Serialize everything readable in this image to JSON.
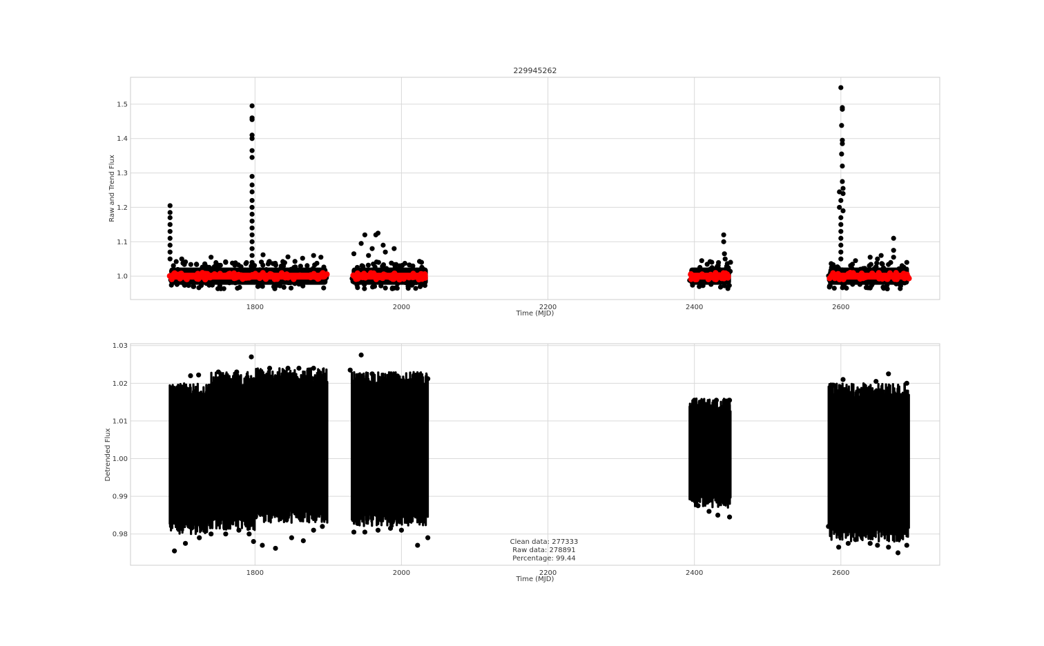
{
  "chart_data": [
    {
      "type": "scatter",
      "title": "229945262",
      "xlabel": "Time (MJD)",
      "ylabel": "Raw and Trend Flux",
      "xlim": [
        1630,
        2735
      ],
      "ylim": [
        0.932,
        1.578
      ],
      "xticks": [
        1800,
        2000,
        2200,
        2400,
        2600
      ],
      "yticks": [
        1.0,
        1.1,
        1.2,
        1.3,
        1.4,
        1.5
      ],
      "yticklabels": [
        "1.0",
        "1.1",
        "1.2",
        "1.3",
        "1.4",
        "1.5"
      ],
      "grid": true,
      "series": [
        {
          "role": "raw",
          "color": "#000000",
          "segments": [
            [
              1683,
              1899
            ],
            [
              1932,
              2036
            ],
            [
              2393,
              2450
            ],
            [
              2583,
              2693
            ]
          ],
          "band": [
            0.975,
            1.025
          ],
          "outliers": [
            [
              1684,
              1.205
            ],
            [
              1684,
              1.185
            ],
            [
              1684,
              1.17
            ],
            [
              1684,
              1.15
            ],
            [
              1684,
              1.13
            ],
            [
              1684,
              1.11
            ],
            [
              1684,
              1.09
            ],
            [
              1684,
              1.07
            ],
            [
              1684,
              1.05
            ],
            [
              1700,
              1.05
            ],
            [
              1740,
              1.055
            ],
            [
              1760,
              1.04
            ],
            [
              1796,
              1.495
            ],
            [
              1796,
              1.46
            ],
            [
              1796,
              1.455
            ],
            [
              1796,
              1.41
            ],
            [
              1796,
              1.4
            ],
            [
              1796,
              1.365
            ],
            [
              1796,
              1.345
            ],
            [
              1796,
              1.29
            ],
            [
              1796,
              1.265
            ],
            [
              1796,
              1.245
            ],
            [
              1796,
              1.22
            ],
            [
              1796,
              1.2
            ],
            [
              1796,
              1.18
            ],
            [
              1796,
              1.16
            ],
            [
              1796,
              1.14
            ],
            [
              1796,
              1.12
            ],
            [
              1796,
              1.1
            ],
            [
              1796,
              1.08
            ],
            [
              1796,
              1.06
            ],
            [
              1796,
              1.04
            ],
            [
              1811,
              1.062
            ],
            [
              1845,
              1.056
            ],
            [
              1865,
              1.052
            ],
            [
              1880,
              1.06
            ],
            [
              1890,
              1.055
            ],
            [
              1935,
              1.065
            ],
            [
              1945,
              1.095
            ],
            [
              1950,
              1.12
            ],
            [
              1960,
              1.08
            ],
            [
              1965,
              1.12
            ],
            [
              1968,
              1.125
            ],
            [
              1975,
              1.09
            ],
            [
              1990,
              1.08
            ],
            [
              1955,
              1.06
            ],
            [
              1978,
              1.07
            ],
            [
              2410,
              1.045
            ],
            [
              2440,
              1.12
            ],
            [
              2440,
              1.1
            ],
            [
              2441,
              1.065
            ],
            [
              2442,
              1.05
            ],
            [
              2600,
              1.548
            ],
            [
              2602,
              1.49
            ],
            [
              2602,
              1.485
            ],
            [
              2601,
              1.438
            ],
            [
              2602,
              1.395
            ],
            [
              2602,
              1.385
            ],
            [
              2601,
              1.355
            ],
            [
              2602,
              1.32
            ],
            [
              2602,
              1.275
            ],
            [
              2603,
              1.255
            ],
            [
              2598,
              1.245
            ],
            [
              2603,
              1.24
            ],
            [
              2600,
              1.22
            ],
            [
              2598,
              1.2
            ],
            [
              2603,
              1.19
            ],
            [
              2600,
              1.17
            ],
            [
              2600,
              1.15
            ],
            [
              2600,
              1.13
            ],
            [
              2600,
              1.11
            ],
            [
              2600,
              1.09
            ],
            [
              2600,
              1.07
            ],
            [
              2600,
              1.05
            ],
            [
              2620,
              1.045
            ],
            [
              2640,
              1.055
            ],
            [
              2650,
              1.05
            ],
            [
              2655,
              1.06
            ],
            [
              2672,
              1.11
            ],
            [
              2672,
              1.075
            ],
            [
              2672,
              1.055
            ],
            [
              2690,
              1.04
            ]
          ]
        },
        {
          "role": "trend",
          "color": "#ff0000",
          "segments": [
            [
              1683,
              1899
            ],
            [
              1932,
              2036
            ],
            [
              2393,
              2450
            ],
            [
              2583,
              2693
            ]
          ],
          "band": [
            0.99,
            1.01
          ]
        }
      ]
    },
    {
      "type": "scatter",
      "xlabel": "Time (MJD)",
      "ylabel": "Detrended Flux",
      "xlim": [
        1630,
        2735
      ],
      "ylim": [
        0.9717,
        1.0305
      ],
      "xticks": [
        1800,
        2000,
        2200,
        2400,
        2600
      ],
      "yticks": [
        0.98,
        0.99,
        1.0,
        1.01,
        1.02,
        1.03
      ],
      "yticklabels": [
        "0.98",
        "0.99",
        "1.00",
        "1.01",
        "1.02",
        "1.03"
      ],
      "grid": true,
      "series": [
        {
          "role": "detrended",
          "color": "#000000",
          "segments": [
            [
              1683,
              1740,
              0.982,
              1.018
            ],
            [
              1740,
              1800,
              0.983,
              1.021
            ],
            [
              1800,
              1899,
              0.985,
              1.022
            ],
            [
              1932,
              2036,
              0.984,
              1.021
            ],
            [
              2393,
              2450,
              0.989,
              1.014
            ],
            [
              2583,
              2693,
              0.98,
              1.018
            ]
          ],
          "outliers": [
            [
              1690,
              0.9755
            ],
            [
              1705,
              0.9775
            ],
            [
              1724,
              0.979
            ],
            [
              1740,
              0.98
            ],
            [
              1760,
              0.98
            ],
            [
              1778,
              0.981
            ],
            [
              1792,
              0.98
            ],
            [
              1798,
              0.978
            ],
            [
              1810,
              0.977
            ],
            [
              1828,
              0.9762
            ],
            [
              1850,
              0.979
            ],
            [
              1866,
              0.9782
            ],
            [
              1880,
              0.981
            ],
            [
              1892,
              0.982
            ],
            [
              1700,
              1.019
            ],
            [
              1712,
              1.022
            ],
            [
              1723,
              1.0222
            ],
            [
              1750,
              1.023
            ],
            [
              1775,
              1.023
            ],
            [
              1795,
              1.027
            ],
            [
              1805,
              1.023
            ],
            [
              1820,
              1.024
            ],
            [
              1845,
              1.024
            ],
            [
              1860,
              1.024
            ],
            [
              1880,
              1.024
            ],
            [
              1930,
              1.0235
            ],
            [
              1945,
              1.0275
            ],
            [
              1960,
              1.0225
            ],
            [
              1990,
              1.0222
            ],
            [
              2018,
              1.022
            ],
            [
              2036,
              1.0212
            ],
            [
              1935,
              0.9805
            ],
            [
              1950,
              0.9805
            ],
            [
              1968,
              0.981
            ],
            [
              1985,
              0.9815
            ],
            [
              2000,
              0.981
            ],
            [
              2022,
              0.977
            ],
            [
              2036,
              0.979
            ],
            [
              2405,
              0.9875
            ],
            [
              2420,
              0.986
            ],
            [
              2432,
              0.985
            ],
            [
              2448,
              0.9845
            ],
            [
              2400,
              1.0155
            ],
            [
              2430,
              1.0155
            ],
            [
              2448,
              1.0155
            ],
            [
              2583,
              0.982
            ],
            [
              2597,
              0.9765
            ],
            [
              2610,
              0.9775
            ],
            [
              2620,
              0.9785
            ],
            [
              2640,
              0.9775
            ],
            [
              2650,
              0.977
            ],
            [
              2665,
              0.9765
            ],
            [
              2678,
              0.975
            ],
            [
              2690,
              0.977
            ],
            [
              2590,
              1.0195
            ],
            [
              2603,
              1.021
            ],
            [
              2625,
              1.018
            ],
            [
              2648,
              1.0205
            ],
            [
              2665,
              1.0225
            ],
            [
              2690,
              1.02
            ]
          ]
        }
      ],
      "annotations": [
        "Clean data: 277333",
        "Raw data: 278891",
        "Percentage: 99.44"
      ]
    }
  ]
}
